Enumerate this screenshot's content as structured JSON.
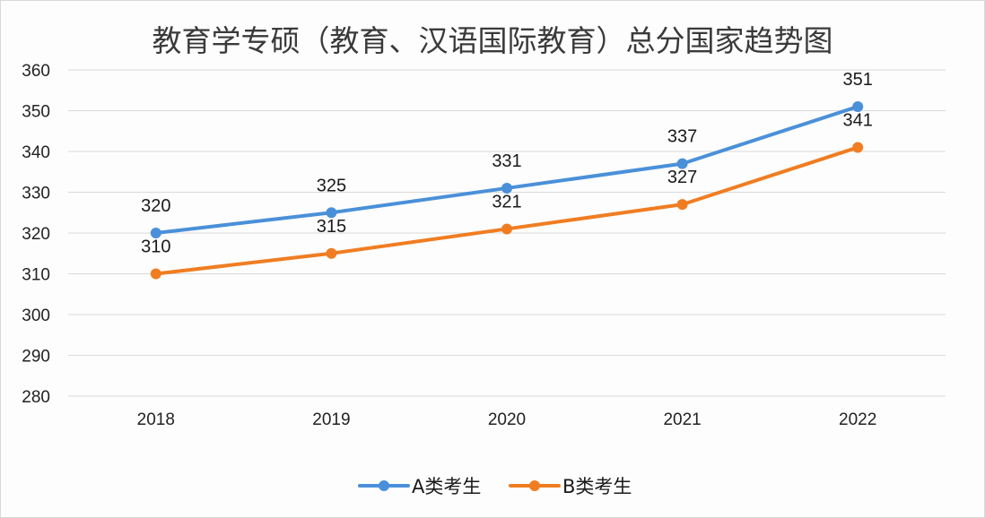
{
  "chart_data": {
    "type": "line",
    "title": "教育学专硕（教育、汉语国际教育）总分国家趋势图",
    "xlabel": "",
    "ylabel": "",
    "categories": [
      "2018",
      "2019",
      "2020",
      "2021",
      "2022"
    ],
    "ylim": [
      280,
      360
    ],
    "yticks": [
      360,
      350,
      340,
      330,
      320,
      310,
      300,
      290,
      280
    ],
    "grid": true,
    "legend_position": "bottom",
    "series": [
      {
        "name": "A类考生",
        "color": "#4a90d9",
        "values": [
          320,
          325,
          331,
          337,
          351
        ]
      },
      {
        "name": "B类考生",
        "color": "#f07d22",
        "values": [
          310,
          315,
          321,
          327,
          341
        ]
      }
    ]
  }
}
